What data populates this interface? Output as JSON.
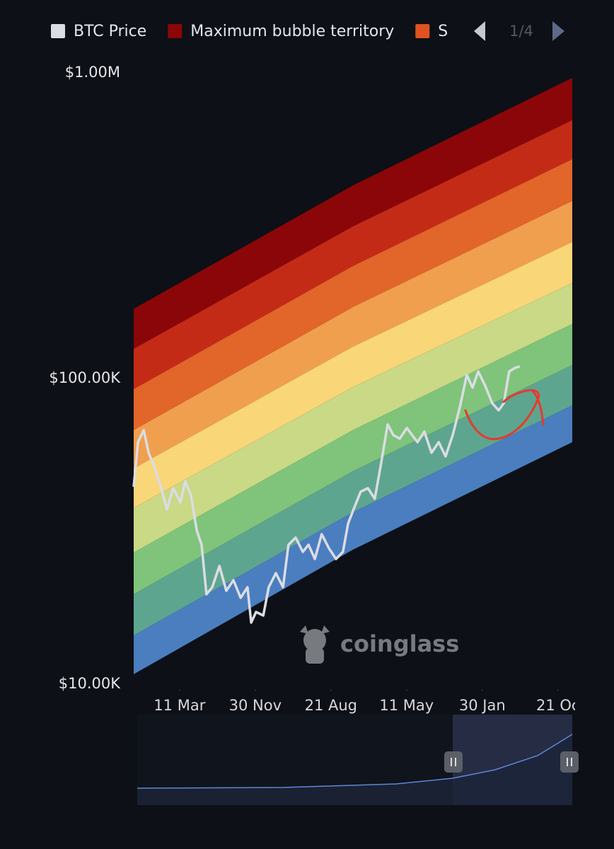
{
  "chart_data": {
    "type": "rainbow",
    "legend_page": "1/4",
    "watermark": "coinglass",
    "ylog": true,
    "ylim": [
      10000,
      1000000
    ],
    "yticks": [
      {
        "value": 10000,
        "label": "$10.00K"
      },
      {
        "value": 100000,
        "label": "$100.00K"
      },
      {
        "value": 1000000,
        "label": "$1.00M"
      }
    ],
    "xlim": [
      0,
      1530
    ],
    "xticks": [
      {
        "value": 160,
        "label": "11 Mar"
      },
      {
        "value": 424,
        "label": "30 Nov"
      },
      {
        "value": 688,
        "label": "21 Aug"
      },
      {
        "value": 952,
        "label": "11 May"
      },
      {
        "value": 1216,
        "label": "30 Jan"
      },
      {
        "value": 1480,
        "label": "21 Oc"
      }
    ],
    "band_x": [
      0,
      765,
      1530
    ],
    "band_edges": [
      [
        169000,
        428500,
        963000
      ],
      [
        125000,
        314600,
        700000
      ],
      [
        92300,
        233400,
        521900
      ],
      [
        67800,
        171300,
        381000
      ],
      [
        50800,
        127200,
        279800
      ],
      [
        37700,
        93800,
        205400
      ],
      [
        26950,
        67800,
        150800
      ],
      [
        19680,
        49760,
        110700
      ],
      [
        14440,
        36520,
        81700
      ],
      [
        10780,
        27540,
        61900
      ]
    ],
    "bands": [
      {
        "name": "Maximum bubble territory",
        "color": "#8b0608"
      },
      {
        "name": "S",
        "color": "#c42b17"
      },
      {
        "color": "#e2652a"
      },
      {
        "color": "#f09f4e"
      },
      {
        "color": "#f9d678"
      },
      {
        "color": "#c9d985"
      },
      {
        "color": "#7fc47a"
      },
      {
        "color": "#5ea58f"
      },
      {
        "color": "#4a7ebf"
      }
    ],
    "series": [
      {
        "name": "BTC Price",
        "color": "#dcdce4",
        "x": [
          0,
          15,
          35,
          52,
          72,
          96,
          116,
          138,
          163,
          180,
          200,
          220,
          237,
          254,
          274,
          299,
          323,
          348,
          373,
          397,
          410,
          427,
          452,
          471,
          496,
          521,
          540,
          565,
          590,
          610,
          632,
          656,
          681,
          706,
          730,
          748,
          767,
          792,
          817,
          841,
          861,
          886,
          906,
          928,
          953,
          990,
          1014,
          1039,
          1064,
          1088,
          1113,
          1138,
          1162,
          1182,
          1202,
          1226,
          1251,
          1273,
          1291,
          1310,
          1330,
          1347
        ],
        "values": [
          44230,
          61900,
          67800,
          57130,
          51350,
          43770,
          37310,
          43770,
          39340,
          46160,
          41500,
          31800,
          28580,
          19680,
          20760,
          24350,
          20210,
          21890,
          19160,
          20760,
          15900,
          17220,
          16770,
          20760,
          23080,
          20760,
          28580,
          30150,
          27100,
          28580,
          25680,
          30950,
          27820,
          25680,
          27100,
          33540,
          37310,
          42620,
          43770,
          40420,
          51350,
          70720,
          65290,
          63570,
          68860,
          61900,
          67060,
          57130,
          61900,
          55640,
          65290,
          80820,
          102700,
          93300,
          105500,
          94830,
          82990,
          78690,
          82990,
          105500,
          108300,
          109500
        ]
      }
    ]
  }
}
